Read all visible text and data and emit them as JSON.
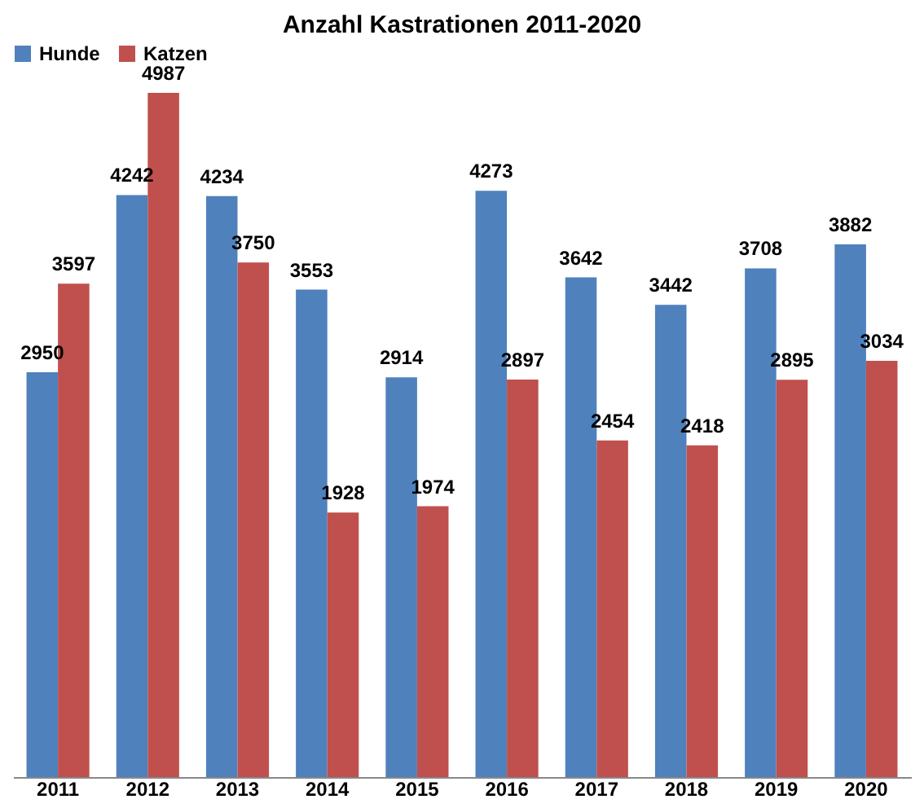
{
  "chart_data": {
    "type": "bar",
    "title": "Anzahl Kastrationen 2011-2020",
    "categories": [
      "2011",
      "2012",
      "2013",
      "2014",
      "2015",
      "2016",
      "2017",
      "2018",
      "2019",
      "2020"
    ],
    "series": [
      {
        "name": "Hunde",
        "color": "#4f81bd",
        "values": [
          2950,
          4242,
          4234,
          3553,
          2914,
          4273,
          3642,
          3442,
          3708,
          3882
        ]
      },
      {
        "name": "Katzen",
        "color": "#c0504d",
        "values": [
          3597,
          4987,
          3750,
          1928,
          1974,
          2897,
          2454,
          2418,
          2895,
          3034
        ]
      }
    ],
    "data_labels": true,
    "legend": "top",
    "grid": false
  }
}
